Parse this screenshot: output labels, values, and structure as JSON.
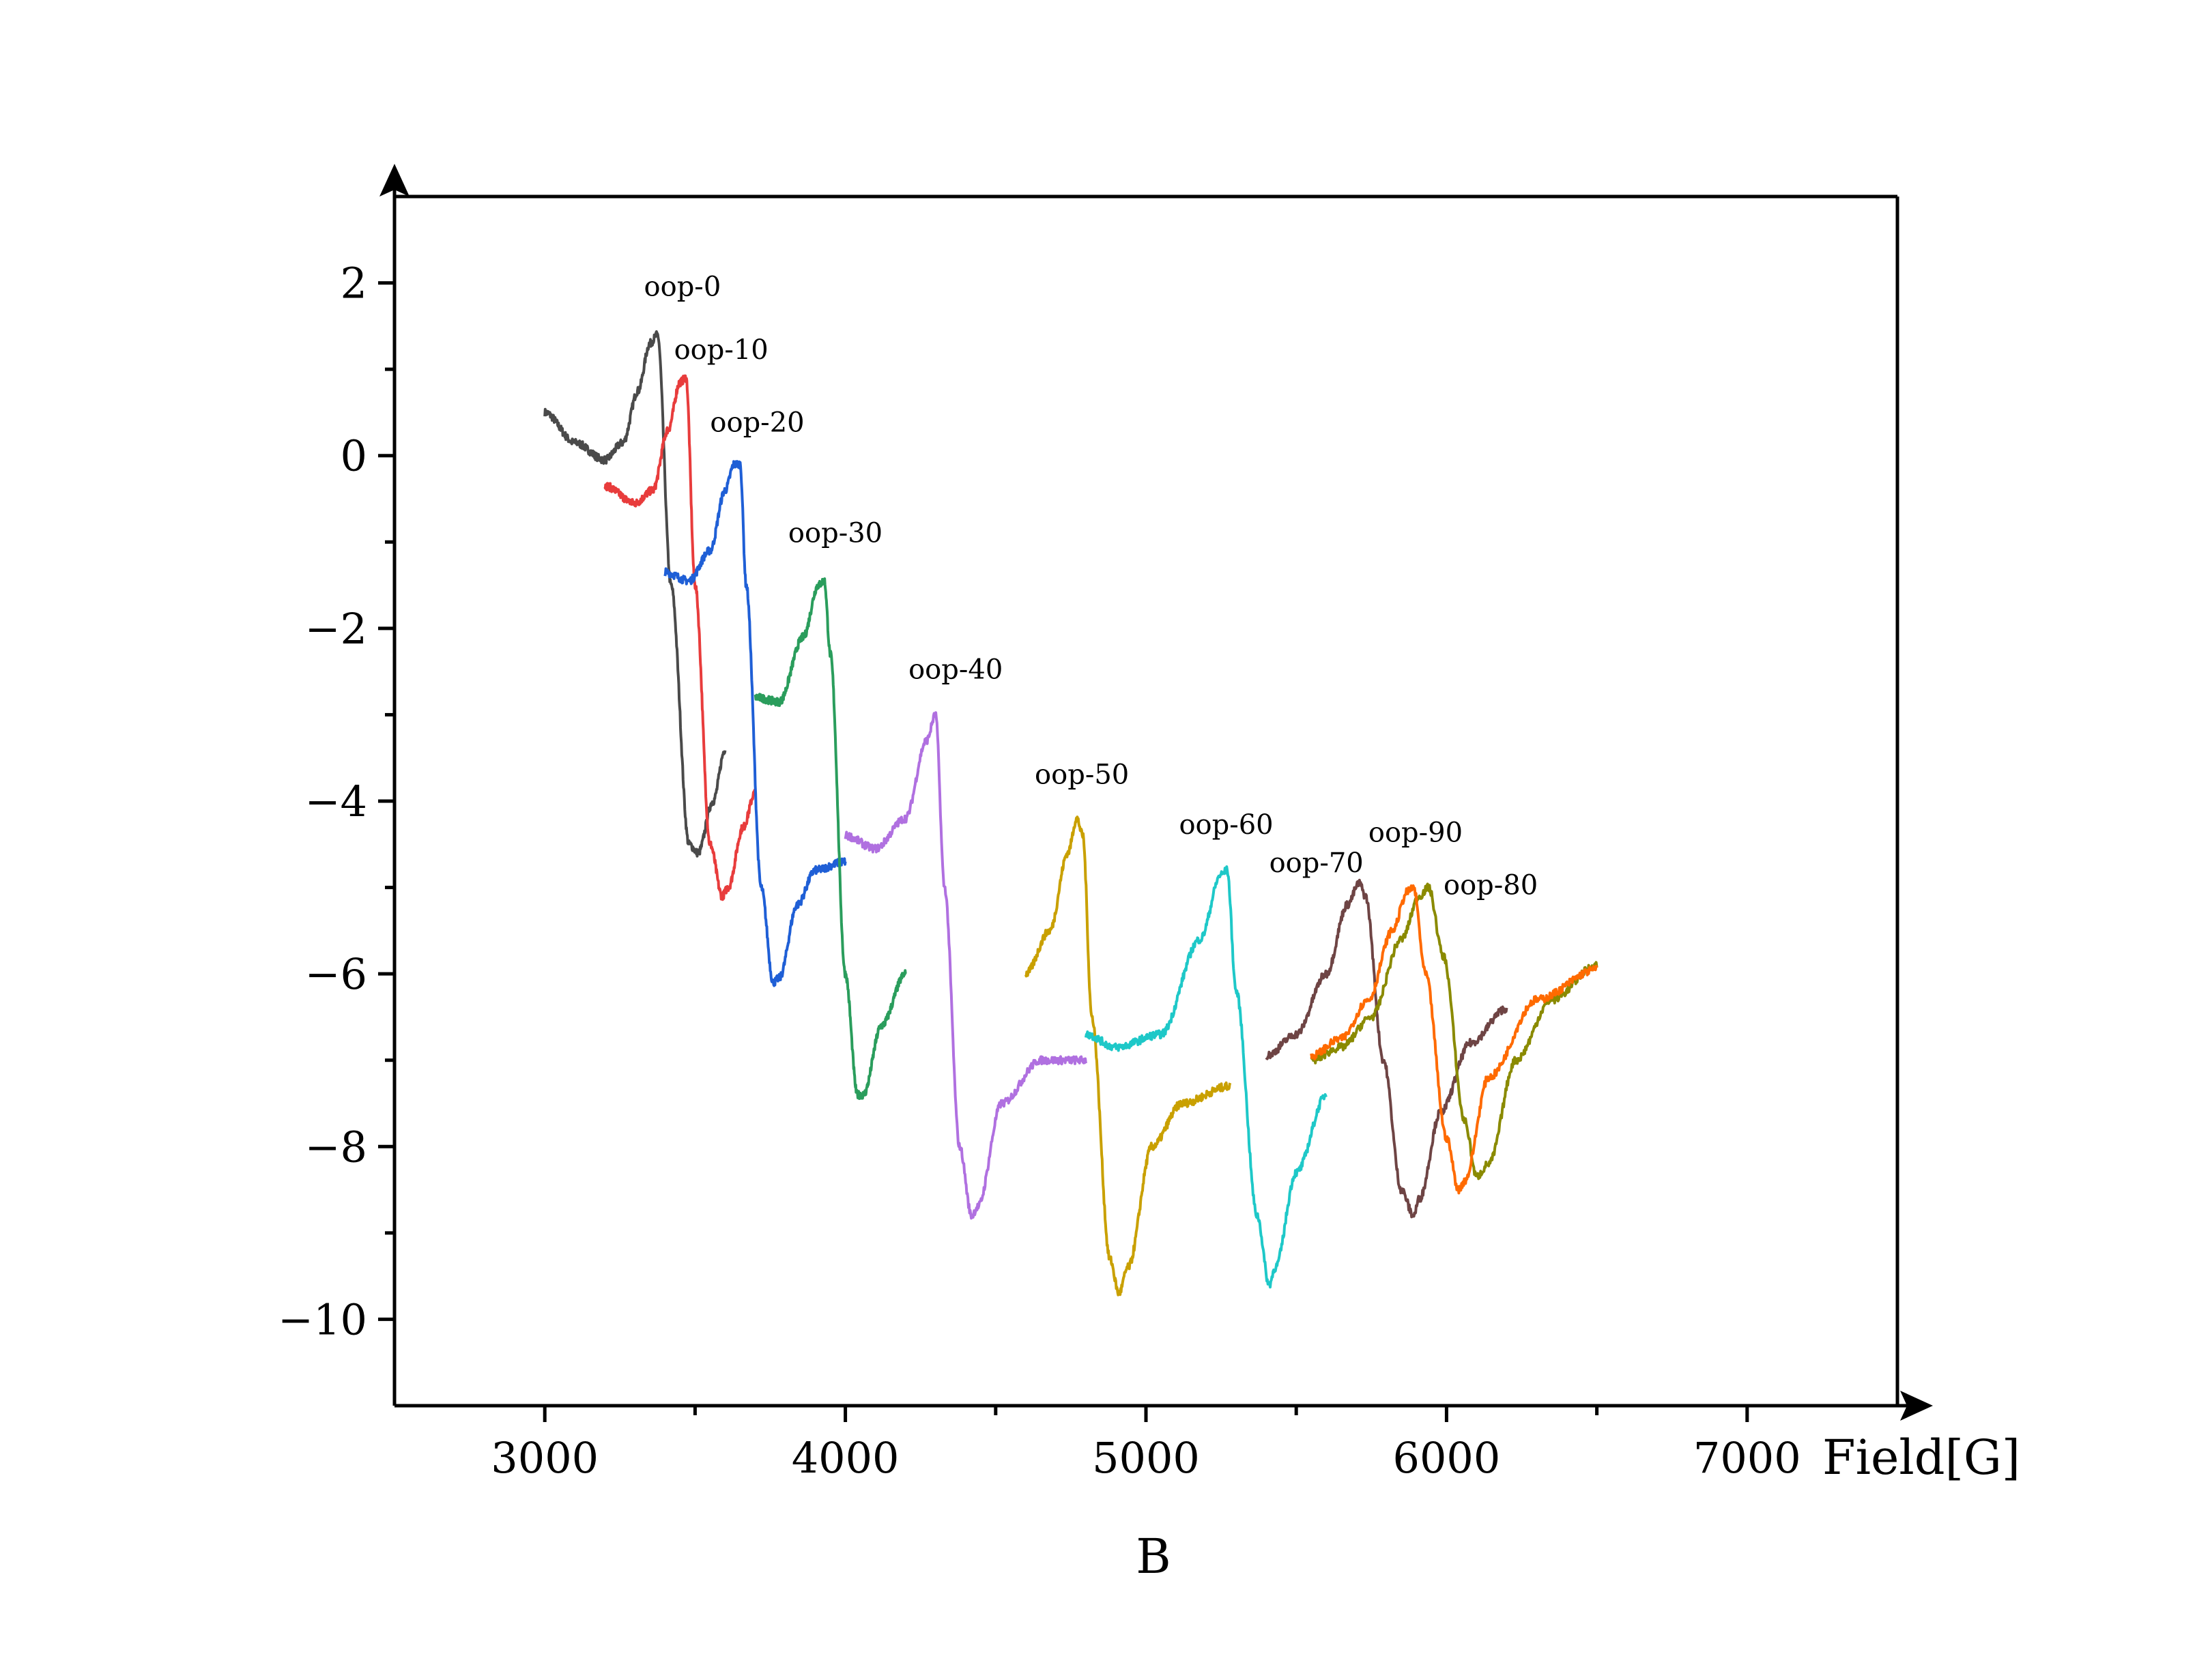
{
  "chart_data": {
    "type": "line",
    "title": "",
    "xlabel": "B",
    "x_unit_label": "Field[G]",
    "ylabel": "",
    "xlim": [
      2500,
      7500
    ],
    "ylim": [
      -11,
      3
    ],
    "x_ticks": [
      3000,
      4000,
      5000,
      6000,
      7000
    ],
    "x_tick_labels": [
      "3000",
      "4000",
      "5000",
      "6000",
      "7000"
    ],
    "y_ticks": [
      2,
      0,
      -2,
      -4,
      -6,
      -8,
      -10
    ],
    "y_tick_labels": [
      "2",
      "0",
      "−2",
      "−4",
      "−6",
      "−8",
      "−10"
    ],
    "grid": false,
    "legend": "none; curves labeled directly",
    "series": [
      {
        "name": "oop-0",
        "color": "#4a4a4a",
        "x": [
          3000,
          3100,
          3200,
          3260,
          3310,
          3350,
          3375,
          3420,
          3480,
          3510,
          3560,
          3600
        ],
        "y": [
          0.5,
          0.15,
          -0.05,
          0.15,
          0.75,
          1.3,
          1.4,
          -1.5,
          -4.5,
          -4.6,
          -4.0,
          -3.4
        ]
      },
      {
        "name": "oop-10",
        "color": "#e83c3c",
        "x": [
          3200,
          3300,
          3360,
          3410,
          3450,
          3470,
          3500,
          3550,
          3590,
          3610,
          3660,
          3700
        ],
        "y": [
          -0.35,
          -0.55,
          -0.4,
          0.3,
          0.85,
          0.9,
          -1.5,
          -4.5,
          -5.1,
          -5.0,
          -4.3,
          -3.9
        ]
      },
      {
        "name": "oop-20",
        "color": "#1f5fd6",
        "x": [
          3400,
          3480,
          3550,
          3600,
          3630,
          3650,
          3670,
          3720,
          3760,
          3780,
          3840,
          3900,
          4000
        ],
        "y": [
          -1.35,
          -1.45,
          -1.1,
          -0.4,
          -0.1,
          -0.1,
          -1.5,
          -5.0,
          -6.1,
          -6.05,
          -5.2,
          -4.8,
          -4.7
        ]
      },
      {
        "name": "oop-30",
        "color": "#2a9d5c",
        "x": [
          3700,
          3780,
          3860,
          3910,
          3930,
          3950,
          4000,
          4040,
          4060,
          4120,
          4200
        ],
        "y": [
          -2.8,
          -2.85,
          -2.1,
          -1.5,
          -1.45,
          -2.3,
          -6.0,
          -7.4,
          -7.4,
          -6.6,
          -6.0
        ]
      },
      {
        "name": "oop-40",
        "color": "#b070e0",
        "x": [
          4000,
          4100,
          4200,
          4270,
          4300,
          4330,
          4380,
          4420,
          4440,
          4520,
          4650,
          4800
        ],
        "y": [
          -4.4,
          -4.55,
          -4.2,
          -3.3,
          -3.0,
          -5.0,
          -8.0,
          -8.8,
          -8.7,
          -7.5,
          -7.0,
          -7.0
        ]
      },
      {
        "name": "oop-50",
        "color": "#c9a000",
        "x": [
          4600,
          4680,
          4740,
          4770,
          4790,
          4820,
          4880,
          4910,
          4940,
          5020,
          5120,
          5280
        ],
        "y": [
          -6.0,
          -5.5,
          -4.6,
          -4.2,
          -4.4,
          -6.5,
          -9.3,
          -9.7,
          -9.4,
          -8.0,
          -7.5,
          -7.3
        ]
      },
      {
        "name": "oop-60",
        "color": "#1ec8c8",
        "x": [
          4800,
          4900,
          5050,
          5180,
          5250,
          5270,
          5300,
          5370,
          5410,
          5430,
          5500,
          5600
        ],
        "y": [
          -6.7,
          -6.85,
          -6.7,
          -5.6,
          -4.85,
          -4.8,
          -6.2,
          -8.8,
          -9.6,
          -9.4,
          -8.3,
          -7.4
        ]
      },
      {
        "name": "oop-70",
        "color": "#6e4444",
        "x": [
          5400,
          5500,
          5600,
          5670,
          5710,
          5730,
          5790,
          5850,
          5890,
          5910,
          5980,
          6080,
          6200
        ],
        "y": [
          -6.95,
          -6.7,
          -6.0,
          -5.2,
          -4.95,
          -5.1,
          -7.0,
          -8.5,
          -8.8,
          -8.6,
          -7.6,
          -6.8,
          -6.4
        ]
      },
      {
        "name": "oop-80",
        "color": "#8a8a00",
        "x": [
          5550,
          5650,
          5750,
          5850,
          5910,
          5940,
          5990,
          6060,
          6100,
          6140,
          6230,
          6350,
          6500
        ],
        "y": [
          -7.0,
          -6.85,
          -6.5,
          -5.6,
          -5.1,
          -5.0,
          -5.8,
          -7.7,
          -8.35,
          -8.2,
          -7.0,
          -6.3,
          -5.9
        ]
      },
      {
        "name": "oop-90",
        "color": "#ff6a00",
        "x": [
          5550,
          5650,
          5740,
          5820,
          5870,
          5890,
          5930,
          6000,
          6040,
          6060,
          6140,
          6300,
          6500
        ],
        "y": [
          -6.95,
          -6.75,
          -6.3,
          -5.5,
          -5.05,
          -5.0,
          -6.0,
          -7.9,
          -8.5,
          -8.4,
          -7.2,
          -6.3,
          -5.95
        ]
      }
    ],
    "annotations": [
      {
        "text": "oop-0",
        "x": 3330,
        "y": 1.85
      },
      {
        "text": "oop-10",
        "x": 3430,
        "y": 1.12
      },
      {
        "text": "oop-20",
        "x": 3550,
        "y": 0.28
      },
      {
        "text": "oop-30",
        "x": 3810,
        "y": -1.0
      },
      {
        "text": "oop-40",
        "x": 4210,
        "y": -2.58
      },
      {
        "text": "oop-50",
        "x": 4630,
        "y": -3.8
      },
      {
        "text": "oop-60",
        "x": 5110,
        "y": -4.38
      },
      {
        "text": "oop-70",
        "x": 5410,
        "y": -4.82
      },
      {
        "text": "oop-90",
        "x": 5740,
        "y": -4.47
      },
      {
        "text": "oop-80",
        "x": 5990,
        "y": -5.08
      }
    ]
  }
}
